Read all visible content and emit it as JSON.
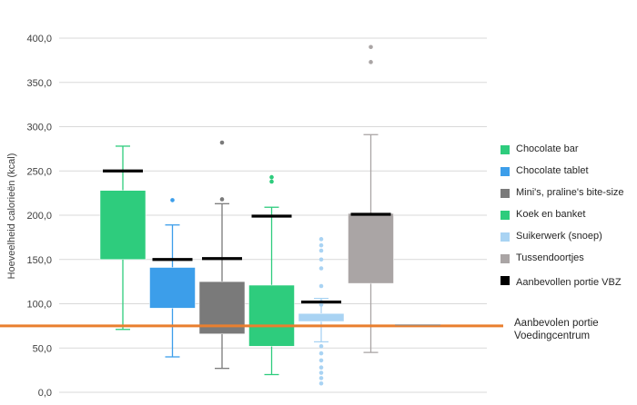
{
  "chart_data": {
    "type": "box",
    "ylabel": "Hoeveelheid calorieën (kcal)",
    "ylim": [
      0,
      400
    ],
    "y_ticks": [
      "0,0",
      "50,0",
      "100,0",
      "150,0",
      "200,0",
      "250,0",
      "300,0",
      "350,0",
      "400,0"
    ],
    "grid": true,
    "legend_position": "right",
    "series": [
      {
        "name": "Chocolate bar",
        "color": "#2ecc7d",
        "whisker_low": 71,
        "q1": 150,
        "q3": 228,
        "whisker_high": 278,
        "outliers": [],
        "recommended_vbz": 250
      },
      {
        "name": "Chocolate tablet",
        "color": "#3c9eea",
        "whisker_low": 40,
        "q1": 95,
        "q3": 141,
        "whisker_high": 189,
        "outliers": [
          217
        ],
        "recommended_vbz": 150
      },
      {
        "name": "Mini's, praline's bite-size",
        "color": "#7a7a7a",
        "whisker_low": 27,
        "q1": 66,
        "q3": 125,
        "whisker_high": 213,
        "outliers": [
          218,
          282
        ],
        "recommended_vbz": 151
      },
      {
        "name": "Koek en banket",
        "color": "#2ecc7d",
        "whisker_low": 20,
        "q1": 52,
        "q3": 121,
        "whisker_high": 209,
        "outliers": [
          238,
          243
        ],
        "recommended_vbz": 199
      },
      {
        "name": "Suikerwerk (snoep)",
        "color": "#a9d3f3",
        "whisker_low": 57,
        "q1": 80,
        "q3": 89,
        "whisker_high": 106,
        "outliers": [
          10,
          16,
          22,
          28,
          36,
          44,
          52,
          99,
          102,
          120,
          140,
          150,
          160,
          166,
          173
        ],
        "recommended_vbz": 102
      },
      {
        "name": "Tussendoortjes",
        "color": "#aaa5a5",
        "whisker_low": 45,
        "q1": 123,
        "q3": 202,
        "whisker_high": 291,
        "outliers": [
          373,
          390
        ],
        "recommended_vbz": 201
      }
    ],
    "recommended_vbz_label": "Aanbevollen portie VBZ",
    "reference_line": {
      "label": "Aanbevolen portie Voedingcentrum",
      "value": 75,
      "color": "#e97f2f"
    }
  }
}
